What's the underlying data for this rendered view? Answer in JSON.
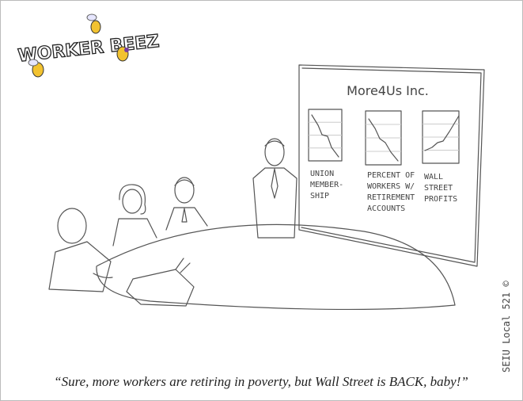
{
  "logo": "WORKER BEEZ",
  "board": {
    "title": "More4Us Inc.",
    "charts": [
      {
        "label": [
          "UNION",
          "MEMBER-",
          "SHIP"
        ]
      },
      {
        "label": [
          "PERCENT OF",
          "WORKERS W/",
          "RETIREMENT",
          "ACCOUNTS"
        ]
      },
      {
        "label": [
          "WALL",
          "STREET",
          "PROFITS"
        ]
      }
    ]
  },
  "caption": "“Sure, more workers are retiring in poverty, but Wall Street is BACK, baby!”",
  "credit": "SEIU Local 521 ©"
}
